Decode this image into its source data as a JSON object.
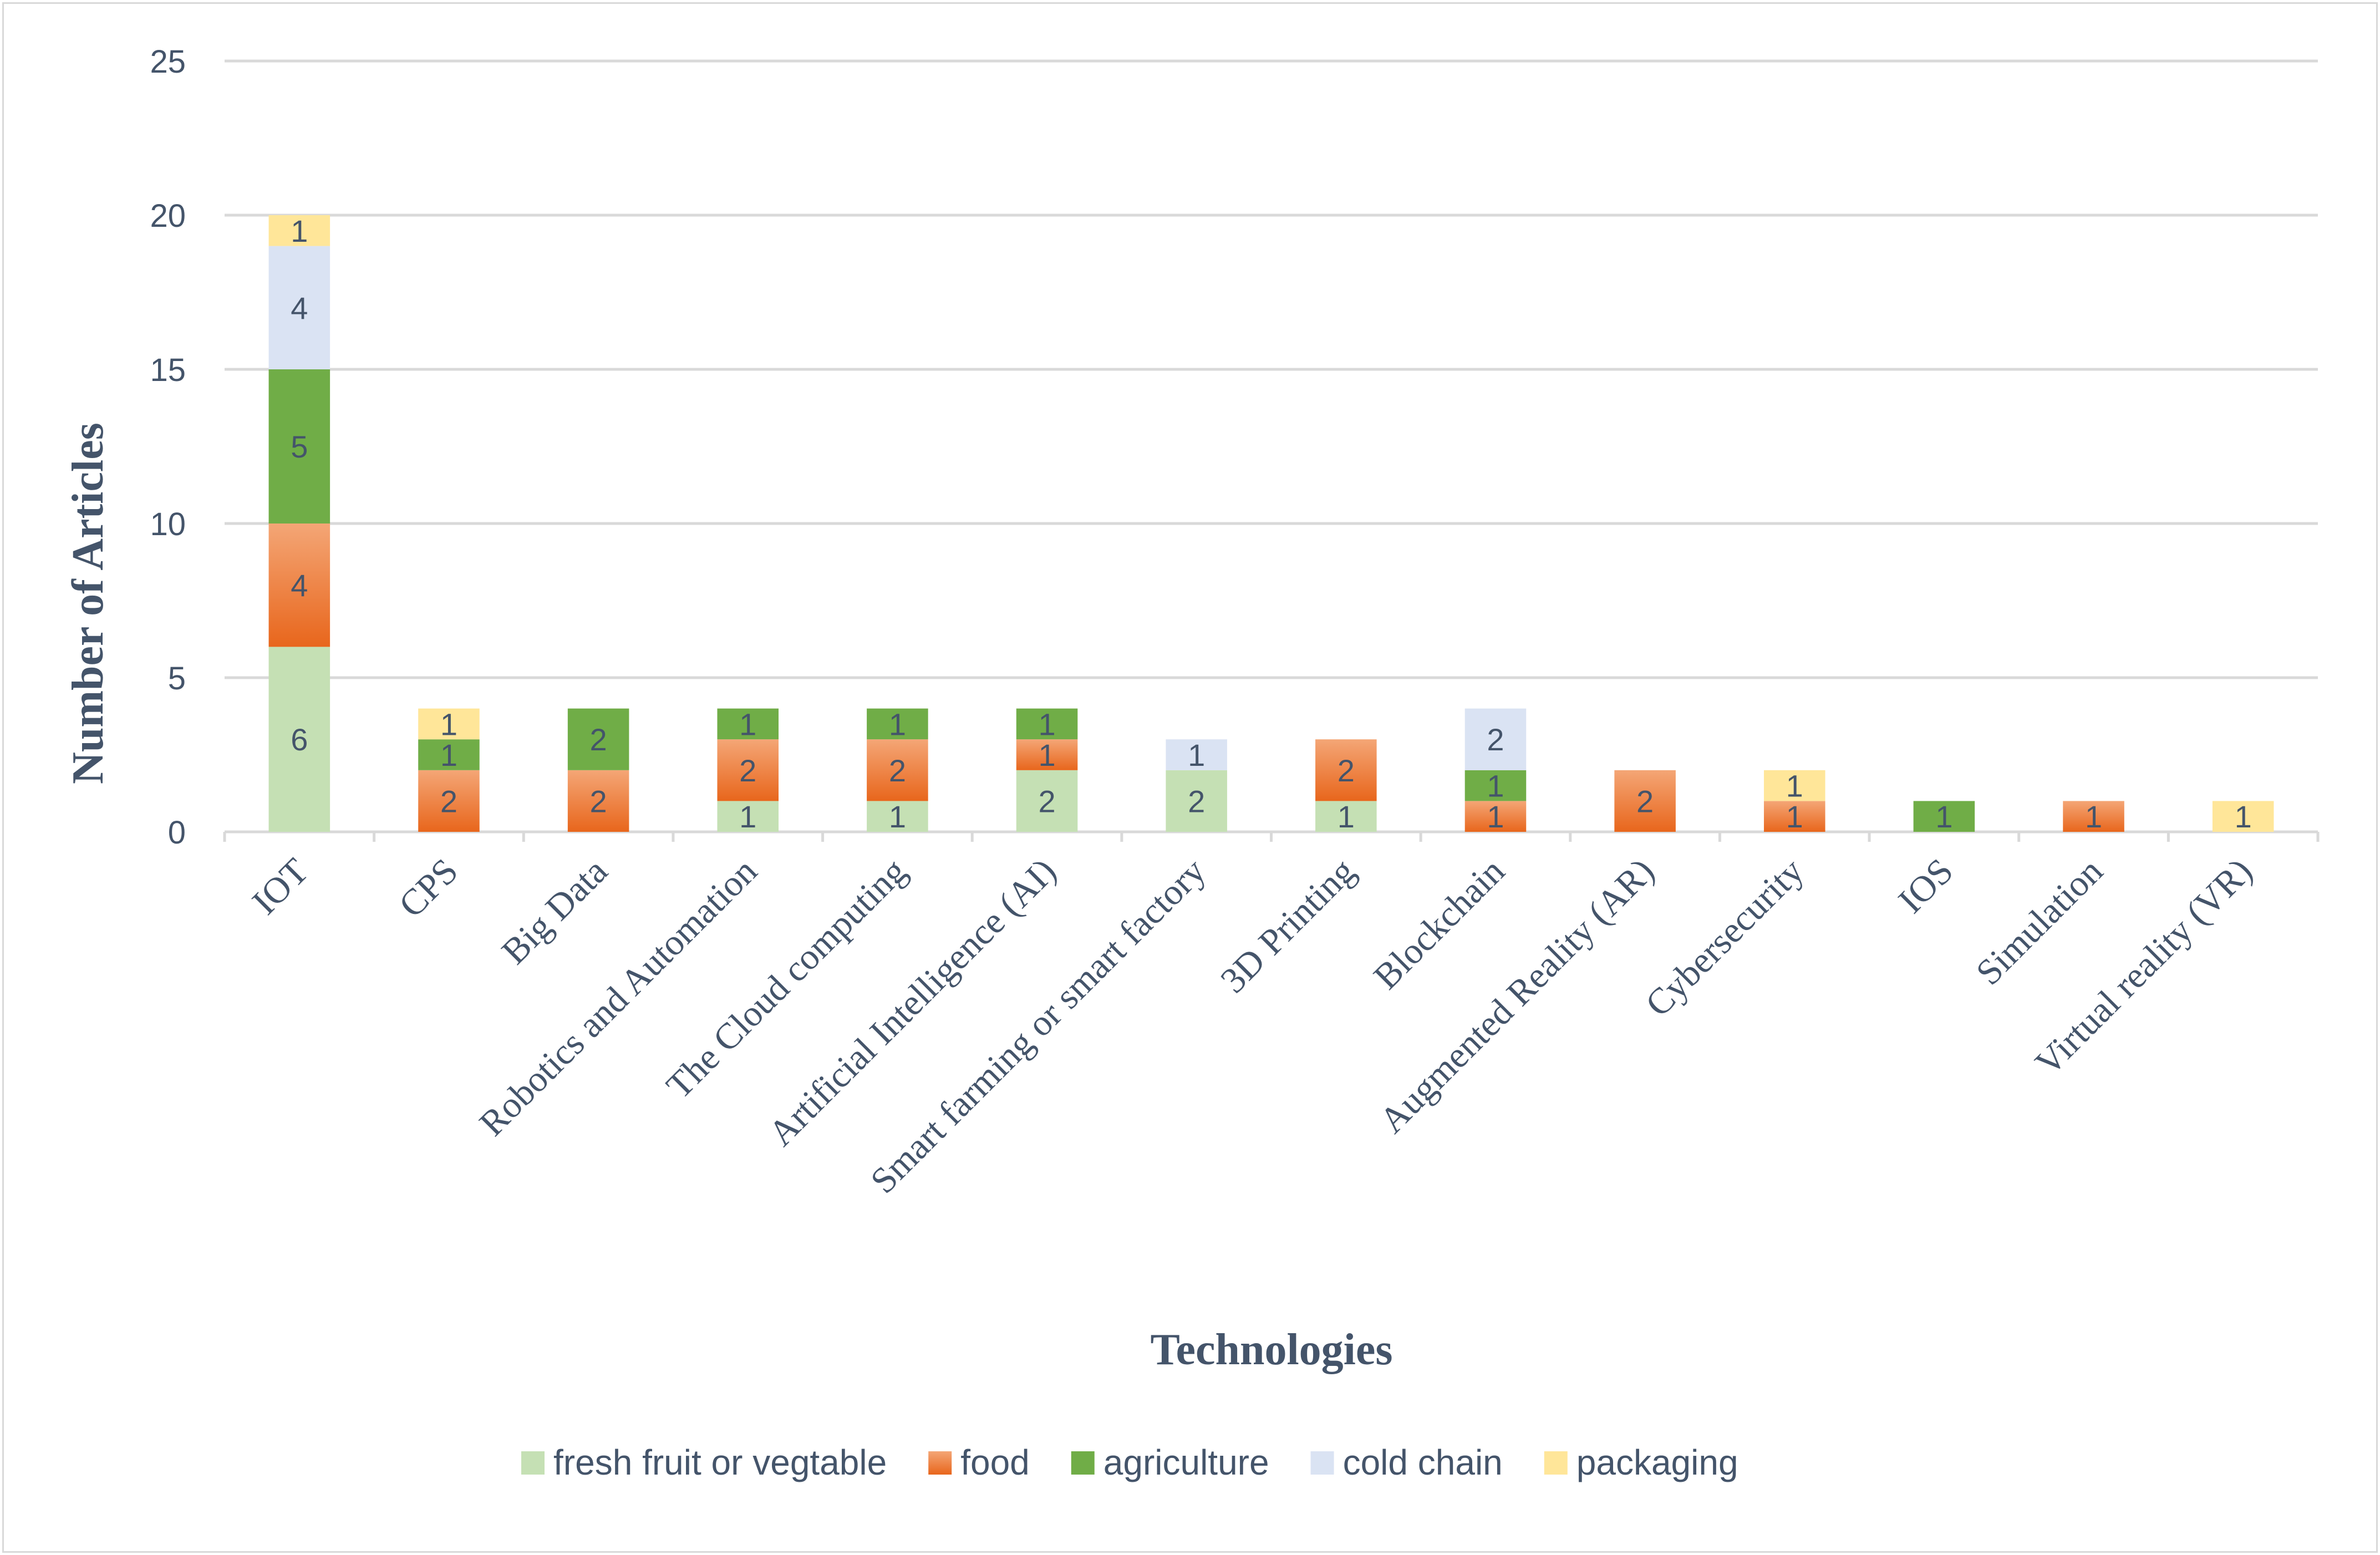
{
  "chart_data": {
    "type": "bar",
    "stacked": true,
    "title": "",
    "xlabel": "Technologies",
    "ylabel": "Number of Articles",
    "ylim": [
      0,
      25
    ],
    "yticks": [
      0,
      5,
      10,
      15,
      20,
      25
    ],
    "grid": true,
    "legend_position": "bottom",
    "categories": [
      "IOT",
      "CPS",
      "Big Data",
      "Robotics and Automation",
      "The Cloud computing",
      "Artificial Intelligence (AI)",
      "Smart farming or smart factory",
      "3D Printing",
      "Blockchain",
      "Augmented Reality (AR)",
      "Cybersecurity",
      "IOS",
      "Simulation",
      "Virtual reality (VR)"
    ],
    "series": [
      {
        "name": "fresh fruit or vegtable",
        "color": "#c5e0b4",
        "values": [
          6,
          0,
          0,
          1,
          1,
          2,
          2,
          1,
          0,
          0,
          0,
          0,
          0,
          0
        ]
      },
      {
        "name": "food",
        "color": "#ed7d31",
        "values": [
          4,
          2,
          2,
          2,
          2,
          1,
          0,
          2,
          1,
          2,
          1,
          0,
          1,
          0
        ]
      },
      {
        "name": "agriculture",
        "color": "#70ad47",
        "values": [
          5,
          1,
          2,
          1,
          1,
          1,
          0,
          0,
          1,
          0,
          0,
          1,
          0,
          0
        ]
      },
      {
        "name": "cold chain",
        "color": "#dae3f3",
        "values": [
          4,
          0,
          0,
          0,
          0,
          0,
          1,
          0,
          2,
          0,
          0,
          0,
          0,
          0
        ]
      },
      {
        "name": "packaging",
        "color": "#ffe699",
        "values": [
          1,
          1,
          0,
          0,
          0,
          0,
          0,
          0,
          0,
          0,
          1,
          0,
          0,
          1
        ]
      }
    ]
  }
}
